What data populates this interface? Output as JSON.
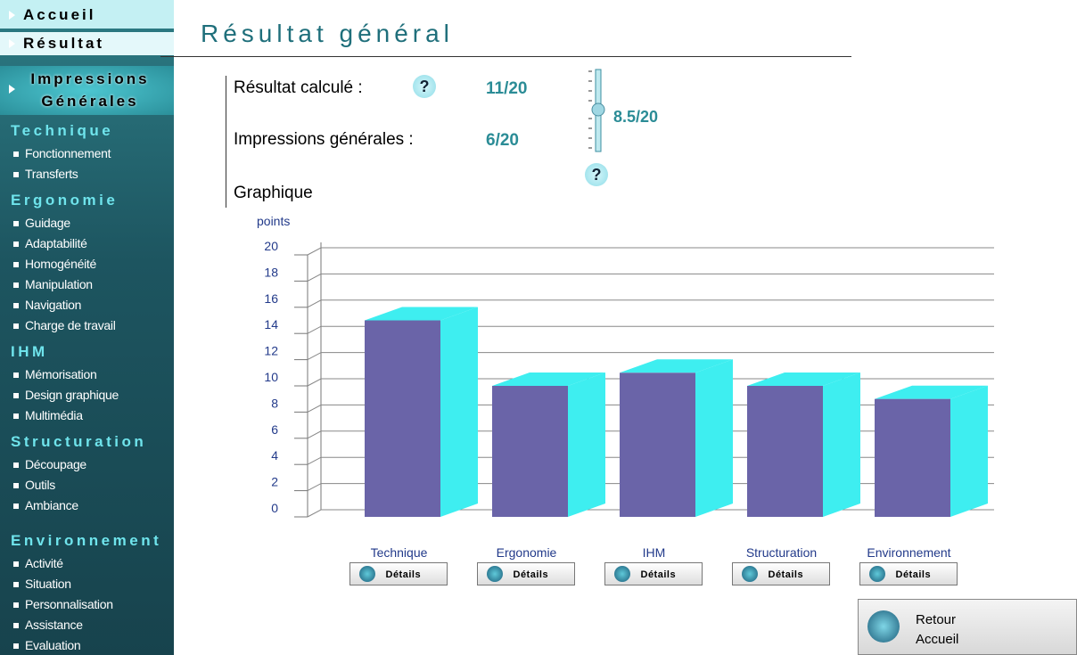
{
  "sidebar": {
    "nav": [
      "Accueil",
      "Résultat",
      "Impressions Générales"
    ],
    "sections": [
      {
        "title": "Technique",
        "items": [
          "Fonctionnement",
          "Transferts"
        ]
      },
      {
        "title": "Ergonomie",
        "items": [
          "Guidage",
          "Adaptabilité",
          "Homogénéité",
          "Manipulation",
          "Navigation",
          "Charge de travail"
        ]
      },
      {
        "title": "IHM",
        "items": [
          "Mémorisation",
          "Design graphique",
          "Multimédia"
        ]
      },
      {
        "title": "Structuration",
        "items": [
          "Découpage",
          "Outils",
          "Ambiance"
        ]
      },
      {
        "title": "Environnement",
        "items": [
          "Activité",
          "Situation",
          "Personnalisation",
          "Assistance",
          "Evaluation"
        ]
      }
    ]
  },
  "header": {
    "title": "Résultat général"
  },
  "results": {
    "computed_label": "Résultat calculé :",
    "computed_value": "11/20",
    "impressions_label": "Impressions générales :",
    "impressions_value": "6/20",
    "slider_value": "8.5/20",
    "help": "?"
  },
  "graph_label": "Graphique",
  "chart_data": {
    "type": "bar",
    "y_label": "points",
    "categories": [
      "Technique",
      "Ergonomie",
      "IHM",
      "Structuration",
      "Environnement"
    ],
    "values": [
      15,
      10,
      11,
      10,
      9
    ],
    "ylim": [
      0,
      20
    ],
    "yticks": [
      0,
      2,
      4,
      6,
      8,
      10,
      12,
      14,
      16,
      18,
      20
    ],
    "grid": true,
    "color": "#6a64a8",
    "side_color": "#3eeef0"
  },
  "buttons": {
    "details": "Détails",
    "back": "Retour Accueil"
  }
}
